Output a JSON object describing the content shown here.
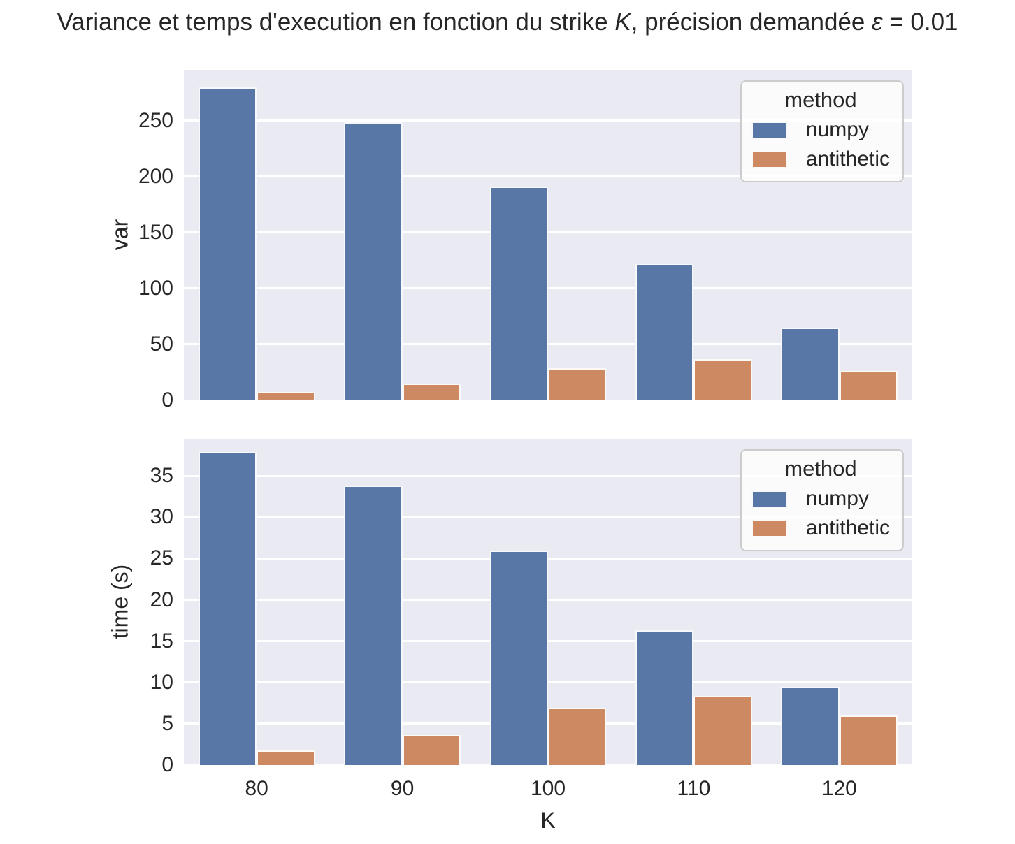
{
  "title": {
    "part1": "Variance et temps d'execution en fonction du strike ",
    "k": "K",
    "part2": ", précision demandée ",
    "eps": "ε",
    "part3": " = 0.01"
  },
  "colors": {
    "numpy": "#5876a6",
    "antithetic": "#cd8a62",
    "plot_bg": "#eaeaf2",
    "grid": "#ffffff",
    "text": "#262626"
  },
  "legend": {
    "title": "method",
    "items": [
      {
        "label": "numpy"
      },
      {
        "label": "antithetic"
      }
    ]
  },
  "chart_data": [
    {
      "type": "bar",
      "ylabel": "var",
      "xlabel": "",
      "categories": [
        80,
        90,
        100,
        110,
        120
      ],
      "series": [
        {
          "name": "numpy",
          "values": [
            280,
            249,
            191,
            122,
            65
          ]
        },
        {
          "name": "antithetic",
          "values": [
            7.5,
            15,
            29,
            37,
            26
          ]
        }
      ],
      "yticks": [
        0,
        50,
        100,
        150,
        200,
        250
      ],
      "ylim": [
        0,
        295.6
      ],
      "grid": true,
      "legend_position": "upper right"
    },
    {
      "type": "bar",
      "ylabel": "time (s)",
      "xlabel": "K",
      "categories": [
        80,
        90,
        100,
        110,
        120
      ],
      "series": [
        {
          "name": "numpy",
          "values": [
            37.9,
            33.8,
            26.0,
            16.3,
            9.5
          ]
        },
        {
          "name": "antithetic",
          "values": [
            1.8,
            3.6,
            6.9,
            8.4,
            6.0
          ]
        }
      ],
      "yticks": [
        0,
        5,
        10,
        15,
        20,
        25,
        30,
        35
      ],
      "ylim": [
        0,
        39.5
      ],
      "grid": true,
      "legend_position": "upper right"
    }
  ]
}
